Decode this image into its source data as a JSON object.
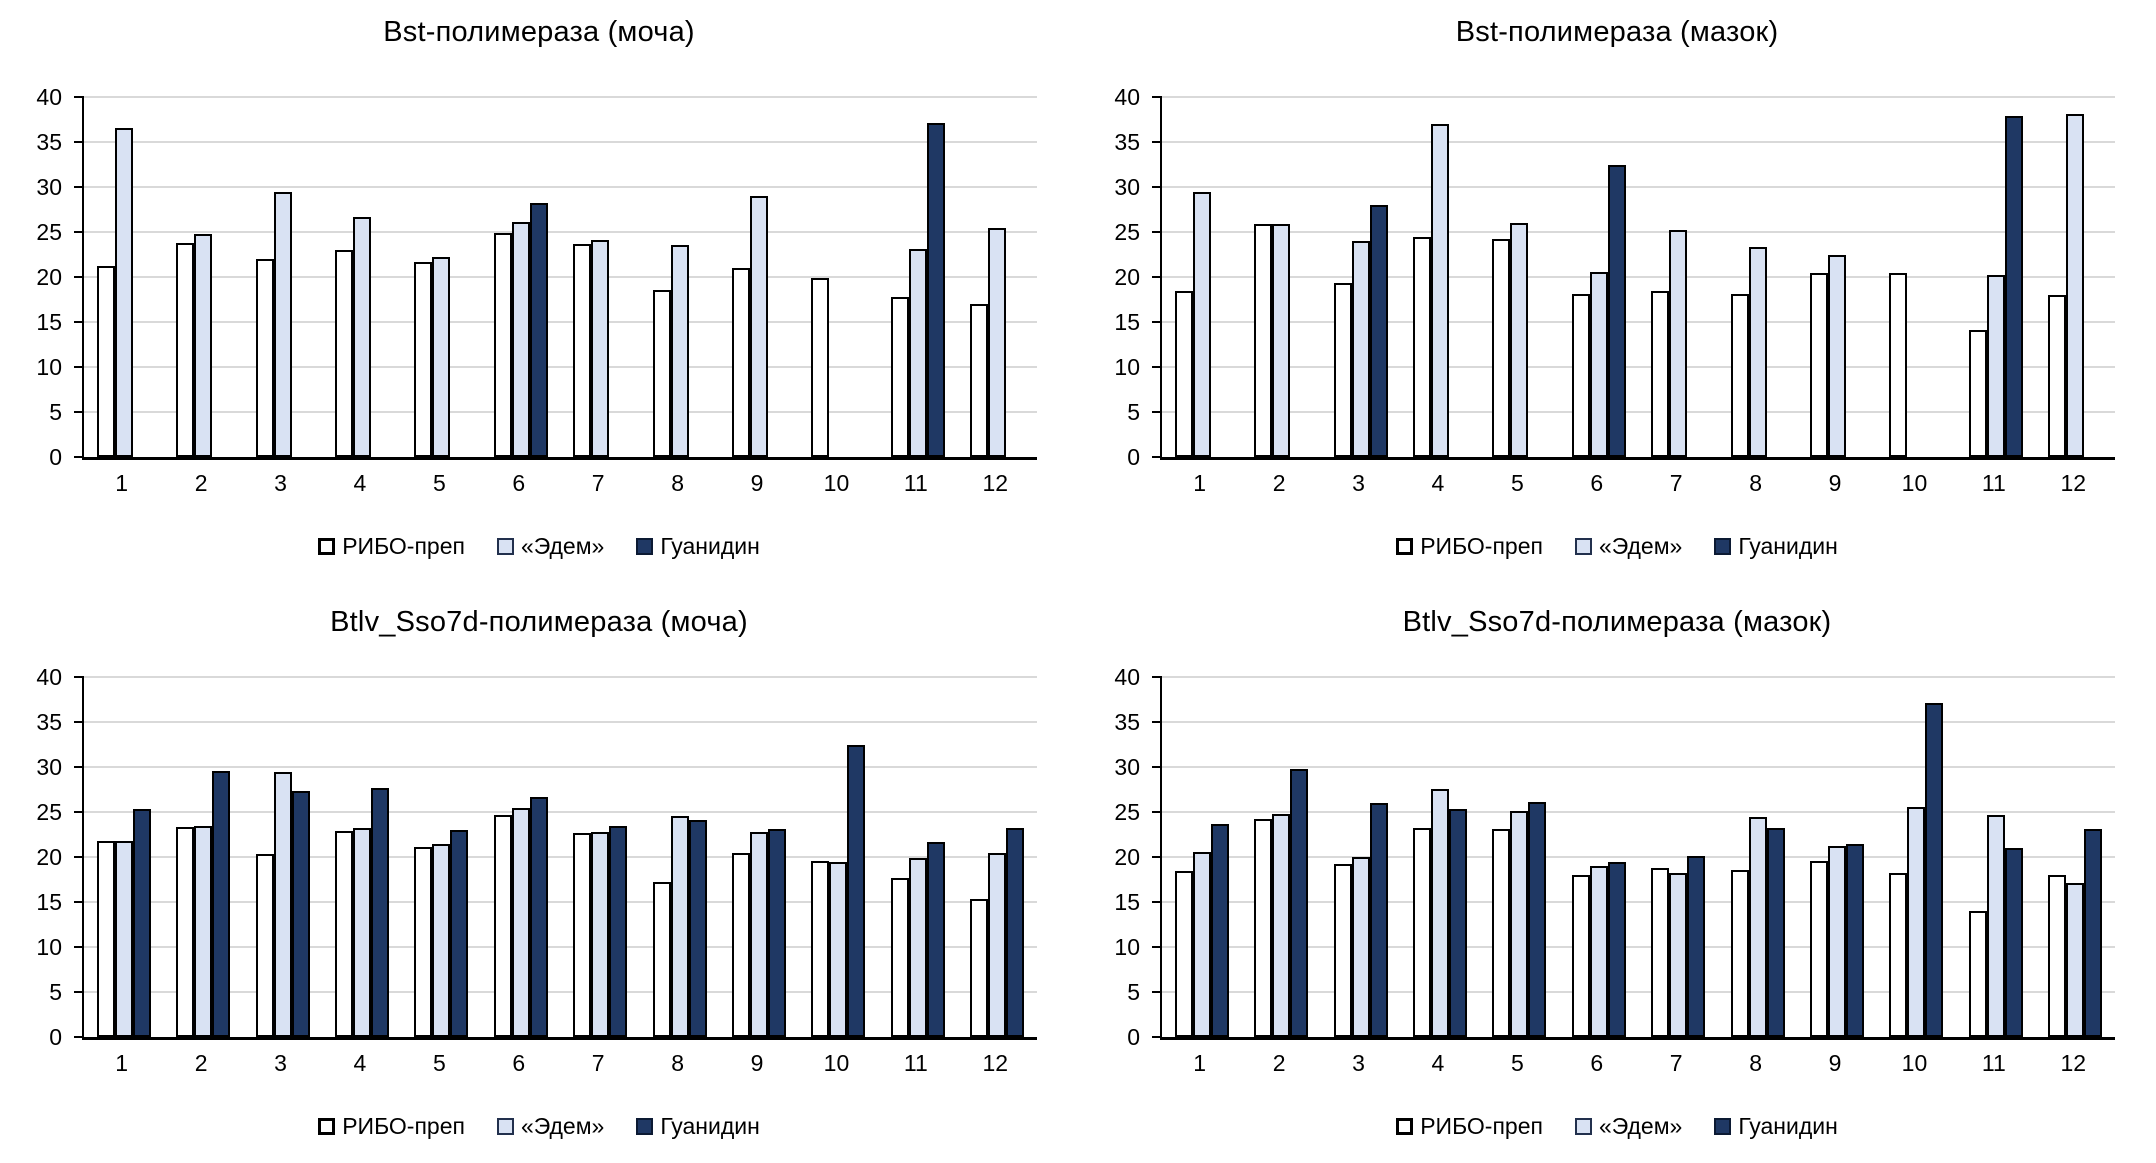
{
  "figure": {
    "background": "#ffffff",
    "grid_layout": "2x2",
    "gridline_color": "#D9D9D9",
    "axis_color": "#000000"
  },
  "chart_data": [
    {
      "type": "bar",
      "title": "Bst-полимераза (моча)",
      "categories": [
        "1",
        "2",
        "3",
        "4",
        "5",
        "6",
        "7",
        "8",
        "9",
        "10",
        "11",
        "12"
      ],
      "ylim": [
        0,
        40
      ],
      "ytick_step": 5,
      "yticks": [
        0,
        5,
        10,
        15,
        20,
        25,
        30,
        35,
        40
      ],
      "grid": true,
      "legend_position": "bottom",
      "series": [
        {
          "name": "РИБО-преп",
          "color": "#FFFFFF",
          "values": [
            21.2,
            23.8,
            22.0,
            23.0,
            21.7,
            24.9,
            23.7,
            18.6,
            21.0,
            19.9,
            17.8,
            17.0
          ]
        },
        {
          "name": "«Эдем»",
          "color": "#D9E2F3",
          "values": [
            36.6,
            24.8,
            29.5,
            26.7,
            22.2,
            26.1,
            24.1,
            23.6,
            29.0,
            null,
            23.1,
            25.4
          ]
        },
        {
          "name": "Гуанидин",
          "color": "#1F3864",
          "values": [
            null,
            null,
            null,
            null,
            null,
            28.2,
            null,
            null,
            null,
            null,
            37.1,
            null
          ]
        }
      ]
    },
    {
      "type": "bar",
      "title": "Bst-полимераза (мазок)",
      "categories": [
        "1",
        "2",
        "3",
        "4",
        "5",
        "6",
        "7",
        "8",
        "9",
        "10",
        "11",
        "12"
      ],
      "ylim": [
        0,
        40
      ],
      "ytick_step": 5,
      "yticks": [
        0,
        5,
        10,
        15,
        20,
        25,
        30,
        35,
        40
      ],
      "grid": true,
      "legend_position": "bottom",
      "series": [
        {
          "name": "РИБО-преп",
          "color": "#FFFFFF",
          "values": [
            18.5,
            25.9,
            19.3,
            24.5,
            24.2,
            18.1,
            18.4,
            18.1,
            20.4,
            20.5,
            14.1,
            18.0
          ]
        },
        {
          "name": "«Эдем»",
          "color": "#D9E2F3",
          "values": [
            29.4,
            25.9,
            24.0,
            37.0,
            26.0,
            20.6,
            25.2,
            23.3,
            22.4,
            null,
            20.2,
            38.1
          ]
        },
        {
          "name": "Гуанидин",
          "color": "#1F3864",
          "values": [
            null,
            null,
            28.0,
            null,
            null,
            32.4,
            null,
            null,
            null,
            null,
            37.9,
            null
          ]
        }
      ]
    },
    {
      "type": "bar",
      "title": "Btlv_Sso7d-полимераза (моча)",
      "categories": [
        "1",
        "2",
        "3",
        "4",
        "5",
        "6",
        "7",
        "8",
        "9",
        "10",
        "11",
        "12"
      ],
      "ylim": [
        0,
        40
      ],
      "ytick_step": 5,
      "yticks": [
        0,
        5,
        10,
        15,
        20,
        25,
        30,
        35,
        40
      ],
      "grid": true,
      "legend_position": "bottom",
      "series": [
        {
          "name": "РИБО-преп",
          "color": "#FFFFFF",
          "values": [
            21.8,
            23.3,
            20.3,
            22.9,
            21.1,
            24.7,
            22.7,
            17.2,
            20.4,
            19.6,
            17.7,
            15.3
          ]
        },
        {
          "name": "«Эдем»",
          "color": "#D9E2F3",
          "values": [
            21.8,
            23.5,
            29.5,
            23.2,
            21.5,
            25.5,
            22.8,
            24.6,
            22.8,
            19.5,
            19.9,
            20.5
          ]
        },
        {
          "name": "Гуанидин",
          "color": "#1F3864",
          "values": [
            25.3,
            29.6,
            27.3,
            27.7,
            23.0,
            26.7,
            23.4,
            24.1,
            23.1,
            32.4,
            21.7,
            23.2
          ]
        }
      ]
    },
    {
      "type": "bar",
      "title": "Btlv_Sso7d-полимераза (мазок)",
      "categories": [
        "1",
        "2",
        "3",
        "4",
        "5",
        "6",
        "7",
        "8",
        "9",
        "10",
        "11",
        "12"
      ],
      "ylim": [
        0,
        40
      ],
      "ytick_step": 5,
      "yticks": [
        0,
        5,
        10,
        15,
        20,
        25,
        30,
        35,
        40
      ],
      "grid": true,
      "legend_position": "bottom",
      "series": [
        {
          "name": "РИБО-преп",
          "color": "#FFFFFF",
          "values": [
            18.5,
            24.2,
            19.2,
            23.2,
            23.1,
            18.0,
            18.8,
            18.6,
            19.6,
            18.2,
            14.0,
            18.0
          ]
        },
        {
          "name": "«Эдем»",
          "color": "#D9E2F3",
          "values": [
            20.6,
            24.8,
            20.0,
            27.6,
            25.1,
            19.0,
            18.2,
            24.4,
            21.2,
            25.6,
            24.7,
            17.1
          ]
        },
        {
          "name": "Гуанидин",
          "color": "#1F3864",
          "values": [
            23.7,
            29.8,
            26.0,
            25.3,
            26.1,
            19.4,
            20.1,
            23.2,
            21.5,
            37.1,
            21.0,
            23.1
          ]
        }
      ]
    }
  ]
}
